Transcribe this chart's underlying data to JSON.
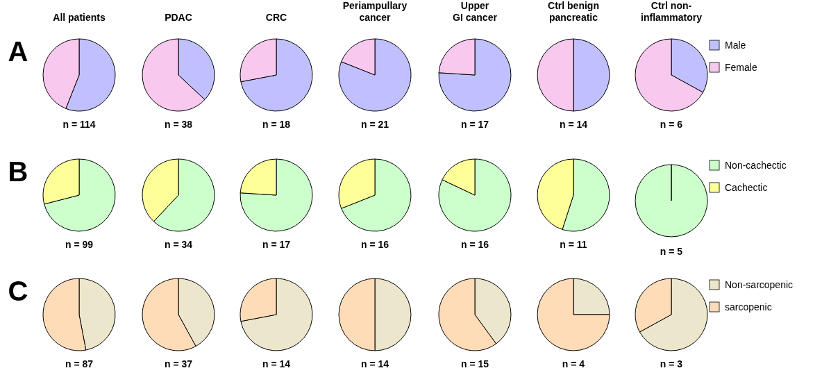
{
  "chart_data": [
    {
      "type": "pie",
      "title": "All patients",
      "categories": [
        null,
        null
      ],
      "values": [
        56,
        44
      ],
      "colors": [
        "#c0c0ff",
        "#f9c8ef"
      ],
      "annotations": [
        "A",
        "n = 114"
      ]
    },
    {
      "type": "pie",
      "title": "PDAC",
      "categories": [
        null,
        null
      ],
      "values": [
        37,
        63
      ],
      "colors": [
        "#c0c0ff",
        "#f9c8ef"
      ],
      "annotations": [
        "n = 38"
      ]
    },
    {
      "type": "pie",
      "title": "CRC",
      "categories": [
        null,
        null
      ],
      "values": [
        72,
        28
      ],
      "colors": [
        "#c0c0ff",
        "#f9c8ef"
      ],
      "annotations": [
        "n = 18"
      ]
    },
    {
      "type": "pie",
      "title": "Periampullary\ncancer",
      "categories": [
        null,
        null
      ],
      "values": [
        81,
        19
      ],
      "colors": [
        "#c0c0ff",
        "#f9c8ef"
      ],
      "annotations": [
        "n = 21"
      ]
    },
    {
      "type": "pie",
      "title": "Upper\nGI cancer",
      "categories": [
        null,
        null
      ],
      "values": [
        76,
        24
      ],
      "colors": [
        "#c0c0ff",
        "#f9c8ef"
      ],
      "annotations": [
        "n = 17"
      ]
    },
    {
      "type": "pie",
      "title": "Ctrl benign\npancreatic",
      "categories": [
        null,
        null
      ],
      "values": [
        50,
        50
      ],
      "colors": [
        "#c0c0ff",
        "#f9c8ef"
      ],
      "annotations": [
        "n = 14"
      ]
    },
    {
      "type": "pie",
      "title": "Ctrl non-\ninflammatory",
      "categories": [
        "Male",
        "Female"
      ],
      "values": [
        33,
        67
      ],
      "colors": [
        "#c0c0ff",
        "#f9c8ef"
      ],
      "annotations": [
        "n = 6"
      ],
      "legend": "right"
    },
    {
      "type": "pie",
      "categories": [
        null,
        null
      ],
      "values": [
        71,
        29
      ],
      "colors": [
        "#ccffcc",
        "#ffff99"
      ],
      "annotations": [
        "B",
        "n = 99"
      ]
    },
    {
      "type": "pie",
      "categories": [
        null,
        null
      ],
      "values": [
        62,
        38
      ],
      "colors": [
        "#ccffcc",
        "#ffff99"
      ],
      "annotations": [
        "n = 34"
      ]
    },
    {
      "type": "pie",
      "categories": [
        null,
        null
      ],
      "values": [
        76,
        24
      ],
      "colors": [
        "#ccffcc",
        "#ffff99"
      ],
      "annotations": [
        "n = 17"
      ]
    },
    {
      "type": "pie",
      "categories": [
        null,
        null
      ],
      "values": [
        69,
        31
      ],
      "colors": [
        "#ccffcc",
        "#ffff99"
      ],
      "annotations": [
        "n = 16"
      ]
    },
    {
      "type": "pie",
      "categories": [
        null,
        null
      ],
      "values": [
        82,
        18
      ],
      "colors": [
        "#ccffcc",
        "#ffff99"
      ],
      "annotations": [
        "n = 16"
      ]
    },
    {
      "type": "pie",
      "categories": [
        null,
        null
      ],
      "values": [
        55,
        45
      ],
      "colors": [
        "#ccffcc",
        "#ffff99"
      ],
      "annotations": [
        "n = 11"
      ]
    },
    {
      "type": "pie",
      "categories": [
        "Non-cachectic",
        "Cachectic"
      ],
      "values": [
        100,
        0
      ],
      "colors": [
        "#ccffcc",
        "#ffff99"
      ],
      "annotations": [
        "n = 5"
      ],
      "legend": "right"
    },
    {
      "type": "pie",
      "categories": [
        null,
        null
      ],
      "values": [
        47,
        53
      ],
      "colors": [
        "#ebe6cc",
        "#ffdcb8"
      ],
      "annotations": [
        "C",
        "n = 87"
      ]
    },
    {
      "type": "pie",
      "categories": [
        null,
        null
      ],
      "values": [
        42,
        58
      ],
      "colors": [
        "#ebe6cc",
        "#ffdcb8"
      ],
      "annotations": [
        "n = 37"
      ]
    },
    {
      "type": "pie",
      "categories": [
        null,
        null
      ],
      "values": [
        72,
        28
      ],
      "colors": [
        "#ebe6cc",
        "#ffdcb8"
      ],
      "annotations": [
        "n = 14"
      ]
    },
    {
      "type": "pie",
      "categories": [
        null,
        null
      ],
      "values": [
        50,
        50
      ],
      "colors": [
        "#ebe6cc",
        "#ffdcb8"
      ],
      "annotations": [
        "n = 14"
      ]
    },
    {
      "type": "pie",
      "categories": [
        null,
        null
      ],
      "values": [
        40,
        60
      ],
      "colors": [
        "#ebe6cc",
        "#ffdcb8"
      ],
      "annotations": [
        "n = 15"
      ]
    },
    {
      "type": "pie",
      "categories": [
        null,
        null
      ],
      "values": [
        25,
        75
      ],
      "colors": [
        "#ebe6cc",
        "#ffdcb8"
      ],
      "annotations": [
        "n = 4"
      ]
    },
    {
      "type": "pie",
      "categories": [
        "Non-sarcopenic",
        "sarcopenic"
      ],
      "values": [
        67,
        33
      ],
      "colors": [
        "#ebe6cc",
        "#ffdcb8"
      ],
      "annotations": [
        "n = 3"
      ],
      "legend": "right"
    }
  ]
}
